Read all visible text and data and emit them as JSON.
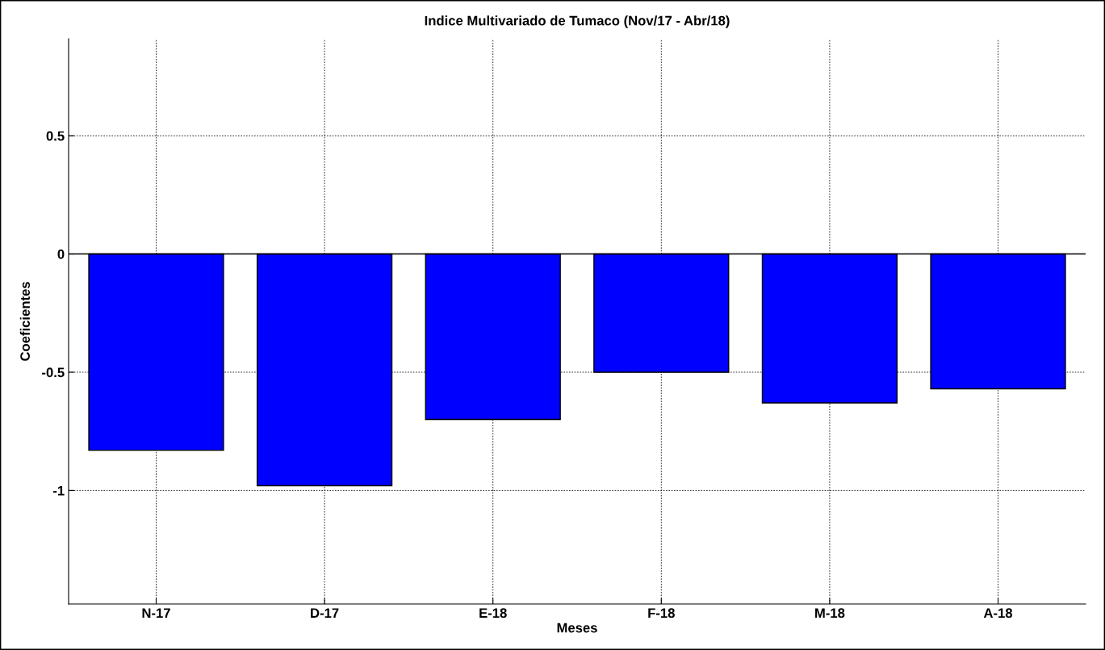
{
  "chart_data": {
    "type": "bar",
    "title": "Indice Multivariado de Tumaco (Nov/17 - Abr/18)",
    "xlabel": "Meses",
    "ylabel": "Coeficientes",
    "categories": [
      "N-17",
      "D-17",
      "E-18",
      "F-18",
      "M-18",
      "A-18"
    ],
    "values": [
      -0.83,
      -0.98,
      -0.7,
      -0.5,
      -0.63,
      -0.57
    ],
    "color": "#0000ff",
    "ylim": [
      -1.48,
      0.91
    ],
    "yticks": [
      {
        "value": -1,
        "label": "-1"
      },
      {
        "value": -0.5,
        "label": "-0.5"
      },
      0,
      0.5
    ],
    "ref_lines": [
      {
        "axis": "y",
        "value": 0,
        "color": "#000000",
        "line_style": "solid"
      }
    ],
    "grid": true
  }
}
